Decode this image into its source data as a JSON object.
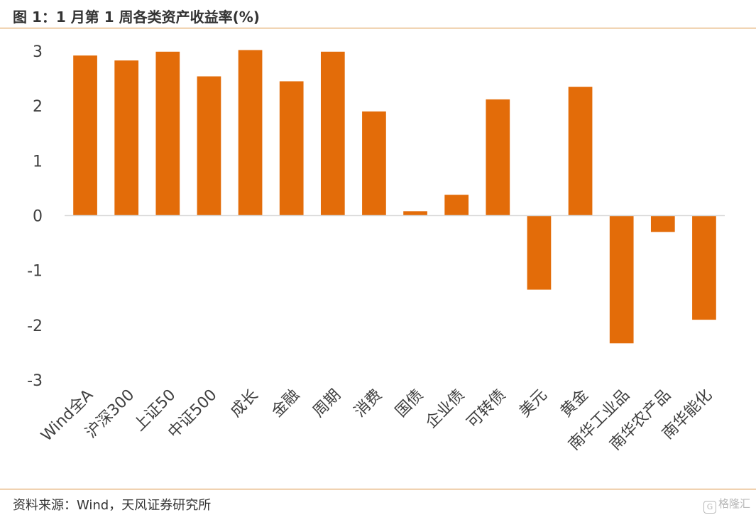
{
  "title": "图 1：1 月第 1 周各类资产收益率(%)",
  "source": "资料来源：Wind，天风证券研究所",
  "watermark": {
    "icon_glyph": "G",
    "text": "格隆汇"
  },
  "colors": {
    "bar": "#e36c09",
    "rule": "#d98f3a",
    "axis": "#d9d9d9"
  },
  "chart_data": {
    "type": "bar",
    "categories": [
      "Wind全A",
      "沪深300",
      "上证50",
      "中证500",
      "成长",
      "金融",
      "周期",
      "消费",
      "国债",
      "企业债",
      "可转债",
      "美元",
      "黄金",
      "南华工业品",
      "南华农产品",
      "南华能化"
    ],
    "values": [
      2.92,
      2.83,
      2.99,
      2.54,
      3.02,
      2.45,
      2.99,
      1.9,
      0.08,
      0.38,
      2.12,
      -1.35,
      2.35,
      -2.33,
      -0.3,
      -1.9
    ],
    "title": "",
    "xlabel": "",
    "ylabel": "",
    "ylim": [
      -3,
      3
    ],
    "yticks": [
      "3",
      "2",
      "1",
      "0",
      "-1",
      "-2",
      "-3"
    ],
    "grid": false,
    "legend": "none"
  }
}
